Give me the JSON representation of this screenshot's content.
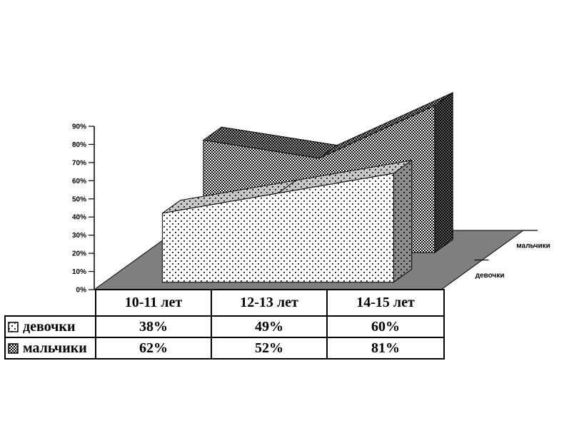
{
  "chart": {
    "y_axis_labels": [
      "0%",
      "10%",
      "20%",
      "30%",
      "40%",
      "50%",
      "60%",
      "70%",
      "80%",
      "90%"
    ],
    "colors": {
      "floor": "#7f7f7f",
      "outline": "#000000",
      "dots_front_bg": "#ffffff",
      "dots_top_bg": "#c8c8c8",
      "dots_end_bg": "#8c8c8c",
      "checker_front_bg": "#ffffff",
      "checker_top_bg": "#9a9a9a",
      "checker_end_bg": "#5a5a5a"
    }
  },
  "chart_data": {
    "type": "area",
    "projection": "3d",
    "categories": [
      "10-11 лет",
      "12-13 лет",
      "14-15 лет"
    ],
    "series": [
      {
        "name": "девочки",
        "values": [
          38,
          49,
          60
        ],
        "pattern": "dots"
      },
      {
        "name": "мальчики",
        "values": [
          62,
          52,
          81
        ],
        "pattern": "checker"
      }
    ],
    "title": "",
    "xlabel": "",
    "ylabel": "",
    "ylim": [
      0,
      90
    ],
    "ytick_step": 10,
    "value_format": "percent",
    "grid": false,
    "legend_position": "data-table-left"
  },
  "table": {
    "header": [
      "10-11 лет",
      "12-13 лет",
      "14-15 лет"
    ],
    "rows": [
      {
        "label": "девочки",
        "values": [
          "38%",
          "49%",
          "60%"
        ]
      },
      {
        "label": "мальчики",
        "values": [
          "62%",
          "52%",
          "81%"
        ]
      }
    ]
  }
}
